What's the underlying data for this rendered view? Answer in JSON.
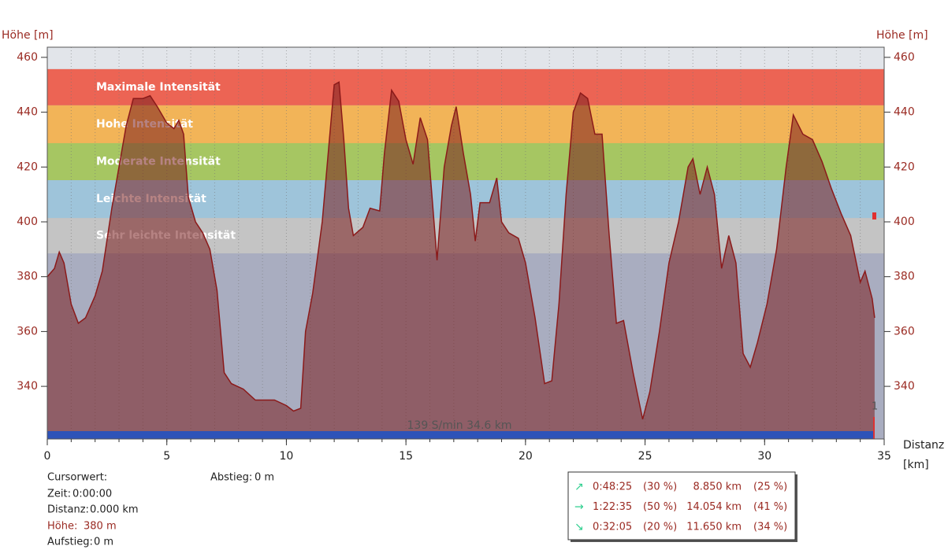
{
  "chart_data": {
    "type": "area",
    "y_label": "Höhe [m]",
    "x_label": [
      "Distanz",
      "[km]"
    ],
    "xlim": [
      0,
      35
    ],
    "xticks": [
      0,
      5,
      10,
      15,
      20,
      25,
      30,
      35
    ],
    "x_minor_step": 1,
    "ylim": [
      320.8,
      463.7
    ],
    "yticks": [
      340,
      360,
      380,
      400,
      420,
      440,
      460
    ],
    "grid": true,
    "line_color": "#8b1a1a",
    "fill_color": "#7a1e1e",
    "bands": [
      {
        "name": "Maximale Intensität",
        "from": 442.5,
        "to": 455.7,
        "color": "#ec6454"
      },
      {
        "name": "Hohe Intensität",
        "from": 428.7,
        "to": 442.5,
        "color": "#f2b458"
      },
      {
        "name": "Moderate Intensität",
        "from": 415.2,
        "to": 428.7,
        "color": "#a6c662"
      },
      {
        "name": "Leichte Intensität",
        "from": 401.4,
        "to": 415.2,
        "color": "#9ec4da"
      },
      {
        "name": "Sehr leichte Intensität",
        "from": 388.5,
        "to": 401.4,
        "color": "#c4c4c4"
      }
    ],
    "marker_label": "139 S/min 34.6 km",
    "lap_label": "1",
    "x": [
      0,
      0.3,
      0.5,
      0.7,
      1,
      1.3,
      1.6,
      2,
      2.3,
      2.7,
      3,
      3.3,
      3.6,
      4,
      4.3,
      4.6,
      5,
      5.3,
      5.5,
      5.7,
      5.9,
      6.2,
      6.5,
      6.8,
      7.1,
      7.4,
      7.7,
      8.2,
      8.7,
      9.5,
      10,
      10.3,
      10.6,
      10.8,
      11.1,
      11.5,
      11.8,
      12,
      12.2,
      12.4,
      12.6,
      12.8,
      13.2,
      13.5,
      13.9,
      14.1,
      14.4,
      14.7,
      15,
      15.3,
      15.6,
      15.9,
      16.3,
      16.6,
      16.9,
      17.1,
      17.4,
      17.7,
      17.9,
      18.1,
      18.5,
      18.8,
      19,
      19.3,
      19.7,
      20,
      20.4,
      20.8,
      21.1,
      21.4,
      21.7,
      22,
      22.3,
      22.6,
      22.9,
      23.2,
      23.5,
      23.8,
      24.1,
      24.5,
      24.9,
      25.2,
      25.6,
      26,
      26.4,
      26.8,
      27,
      27.3,
      27.6,
      27.9,
      28.2,
      28.5,
      28.8,
      29.1,
      29.4,
      29.7,
      30.1,
      30.5,
      30.9,
      31.2,
      31.6,
      32,
      32.4,
      32.8,
      33.2,
      33.6,
      34,
      34.2,
      34.5,
      34.6
    ],
    "values": [
      380,
      383,
      389,
      385,
      370,
      363,
      365,
      373,
      382,
      405,
      420,
      435,
      445,
      445,
      446,
      442,
      436,
      434,
      437,
      432,
      409,
      400,
      396,
      390,
      375,
      345,
      341,
      339,
      335,
      335,
      333,
      331,
      332,
      360,
      374,
      400,
      430,
      450,
      451,
      430,
      405,
      395,
      398,
      405,
      404,
      425,
      448,
      444,
      430,
      421,
      438,
      430,
      386,
      420,
      435,
      442,
      425,
      410,
      393,
      407,
      407,
      416,
      400,
      396,
      394,
      385,
      365,
      341,
      342,
      370,
      410,
      440,
      447,
      445,
      432,
      432,
      395,
      363,
      364,
      345,
      328,
      338,
      360,
      385,
      400,
      420,
      423,
      410,
      420,
      410,
      383,
      395,
      385,
      352,
      347,
      356,
      370,
      390,
      420,
      439,
      432,
      430,
      422,
      412,
      403,
      395,
      378,
      382,
      372,
      365
    ]
  },
  "cursor": {
    "title": "Cursorwert:",
    "fields": [
      {
        "label": "Zeit:",
        "value": "0:00:00"
      },
      {
        "label": "Distanz:",
        "value": "0.000 km"
      },
      {
        "label": "Höhe:",
        "value": "380 m"
      },
      {
        "label": "Aufstieg:",
        "value": "0 m"
      }
    ],
    "descent": {
      "label": "Abstieg:",
      "value": "0 m"
    }
  },
  "summary": {
    "rows": [
      {
        "icon": "↗",
        "time": "0:48:25",
        "time_pct": "(30 %)",
        "distance": "8.850 km",
        "distance_pct": "(25 %)"
      },
      {
        "icon": "→",
        "time": "1:22:35",
        "time_pct": "(50 %)",
        "distance": "14.054 km",
        "distance_pct": "(41 %)"
      },
      {
        "icon": "↘",
        "time": "0:32:05",
        "time_pct": "(20 %)",
        "distance": "11.650 km",
        "distance_pct": "(34 %)"
      }
    ]
  }
}
